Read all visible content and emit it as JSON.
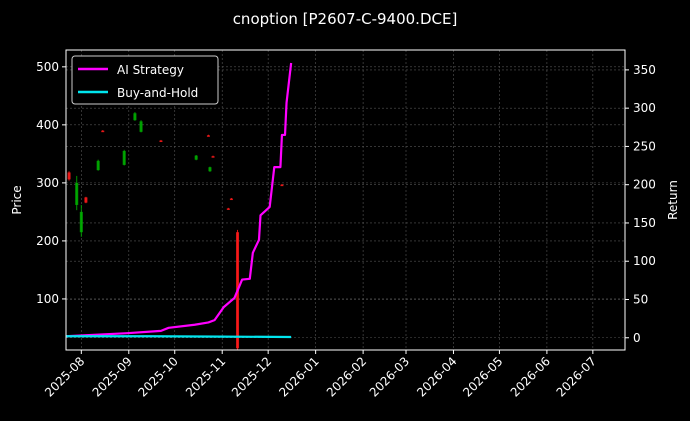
{
  "chart_data": {
    "type": "line",
    "title": "cnoption [P2607-C-9400.DCE]",
    "ylabel": "Price",
    "y2label": "Return",
    "xlim": [
      "2025-07-22",
      "2026-07-22"
    ],
    "ylim": [
      12,
      529
    ],
    "y2lim": [
      -16,
      376
    ],
    "grid": true,
    "legend_position": "top-left",
    "x_ticks": [
      "2025-08-01",
      "2025-09-01",
      "2025-10-01",
      "2025-11-01",
      "2025-12-01",
      "2026-01-01",
      "2026-02-01",
      "2026-03-01",
      "2026-04-01",
      "2026-05-01",
      "2026-06-01",
      "2026-07-01"
    ],
    "x_tick_labels": [
      "2025-08",
      "2025-09",
      "2025-10",
      "2025-11",
      "2025-12",
      "2026-01",
      "2026-02",
      "2026-03",
      "2026-04",
      "2026-05",
      "2026-06",
      "2026-07"
    ],
    "y_ticks": [
      100,
      200,
      300,
      400,
      500
    ],
    "y2_ticks": [
      0,
      50,
      100,
      150,
      200,
      250,
      300,
      350
    ],
    "series": [
      {
        "name": "AI Strategy",
        "color": "#ff00ff",
        "axis": "return",
        "x": [
          "2025-07-22",
          "2025-08-31",
          "2025-09-22",
          "2025-09-27",
          "2025-10-14",
          "2025-10-23",
          "2025-10-27",
          "2025-11-02",
          "2025-11-09",
          "2025-11-14",
          "2025-11-19",
          "2025-11-21",
          "2025-11-25",
          "2025-11-26",
          "2025-12-02",
          "2025-12-05",
          "2025-12-09",
          "2025-12-10",
          "2025-12-12",
          "2025-12-13",
          "2025-12-16"
        ],
        "values": [
          2,
          6,
          9,
          13,
          17,
          20,
          23,
          40,
          52,
          76,
          77,
          111,
          128,
          160,
          171,
          223,
          223,
          265,
          265,
          307,
          359
        ]
      },
      {
        "name": "Buy-and-Hold",
        "color": "#00e5ee",
        "axis": "return",
        "x": [
          "2025-07-22",
          "2025-09-15",
          "2025-11-01",
          "2025-12-16"
        ],
        "values": [
          2,
          2,
          1.5,
          1
        ]
      }
    ],
    "candles": [
      {
        "date": "2025-07-24",
        "open": 318,
        "high": 320,
        "low": 304,
        "close": 306
      },
      {
        "date": "2025-07-29",
        "open": 262,
        "high": 312,
        "low": 253,
        "close": 300
      },
      {
        "date": "2025-08-01",
        "open": 215,
        "high": 262,
        "low": 207,
        "close": 250
      },
      {
        "date": "2025-08-04",
        "open": 275,
        "high": 276,
        "low": 265,
        "close": 266
      },
      {
        "date": "2025-08-12",
        "open": 322,
        "high": 340,
        "low": 321,
        "close": 338
      },
      {
        "date": "2025-08-15",
        "open": 390,
        "high": 391,
        "low": 388,
        "close": 389
      },
      {
        "date": "2025-08-29",
        "open": 331,
        "high": 357,
        "low": 330,
        "close": 355
      },
      {
        "date": "2025-09-05",
        "open": 408,
        "high": 422,
        "low": 407,
        "close": 420
      },
      {
        "date": "2025-09-09",
        "open": 388,
        "high": 408,
        "low": 387,
        "close": 406
      },
      {
        "date": "2025-09-22",
        "open": 373,
        "high": 374,
        "low": 371,
        "close": 372
      },
      {
        "date": "2025-10-15",
        "open": 340,
        "high": 348,
        "low": 339,
        "close": 347
      },
      {
        "date": "2025-10-23",
        "open": 382,
        "high": 383,
        "low": 380,
        "close": 381
      },
      {
        "date": "2025-10-24",
        "open": 320,
        "high": 328,
        "low": 319,
        "close": 327
      },
      {
        "date": "2025-10-26",
        "open": 346,
        "high": 347,
        "low": 344,
        "close": 345
      },
      {
        "date": "2025-11-05",
        "open": 256,
        "high": 257,
        "low": 254,
        "close": 255
      },
      {
        "date": "2025-11-07",
        "open": 273,
        "high": 274,
        "low": 271,
        "close": 272
      },
      {
        "date": "2025-11-11",
        "open": 215,
        "high": 219,
        "low": 12,
        "close": 15
      },
      {
        "date": "2025-12-10",
        "open": 297,
        "high": 298,
        "low": 295,
        "close": 296
      }
    ],
    "candle_colors": {
      "up": "#00b000",
      "down": "#ff1a1a"
    }
  }
}
